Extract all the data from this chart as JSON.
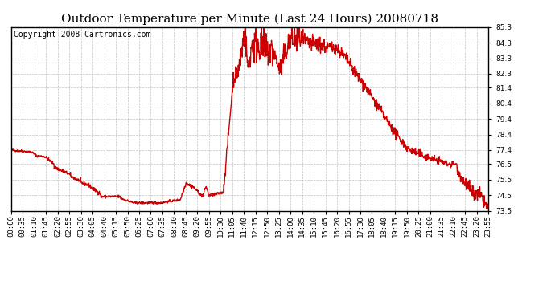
{
  "title": "Outdoor Temperature per Minute (Last 24 Hours) 20080718",
  "copyright_text": "Copyright 2008 Cartronics.com",
  "line_color": "#cc0000",
  "background_color": "#ffffff",
  "grid_color": "#bbbbbb",
  "ylim": [
    73.5,
    85.3
  ],
  "yticks": [
    73.5,
    74.5,
    75.5,
    76.5,
    77.4,
    78.4,
    79.4,
    80.4,
    81.4,
    82.3,
    83.3,
    84.3,
    85.3
  ],
  "xtick_labels": [
    "00:00",
    "00:35",
    "01:10",
    "01:45",
    "02:20",
    "02:55",
    "03:30",
    "04:05",
    "04:40",
    "05:15",
    "05:50",
    "06:25",
    "07:00",
    "07:35",
    "08:10",
    "08:45",
    "09:20",
    "09:55",
    "10:30",
    "11:05",
    "11:40",
    "12:15",
    "12:50",
    "13:25",
    "14:00",
    "14:35",
    "15:10",
    "15:45",
    "16:20",
    "16:55",
    "17:30",
    "18:05",
    "18:40",
    "19:15",
    "19:50",
    "20:25",
    "21:00",
    "21:35",
    "22:10",
    "22:45",
    "23:20",
    "23:55"
  ],
  "title_fontsize": 11,
  "copyright_fontsize": 7,
  "tick_fontsize": 6.5,
  "line_width": 1.0
}
